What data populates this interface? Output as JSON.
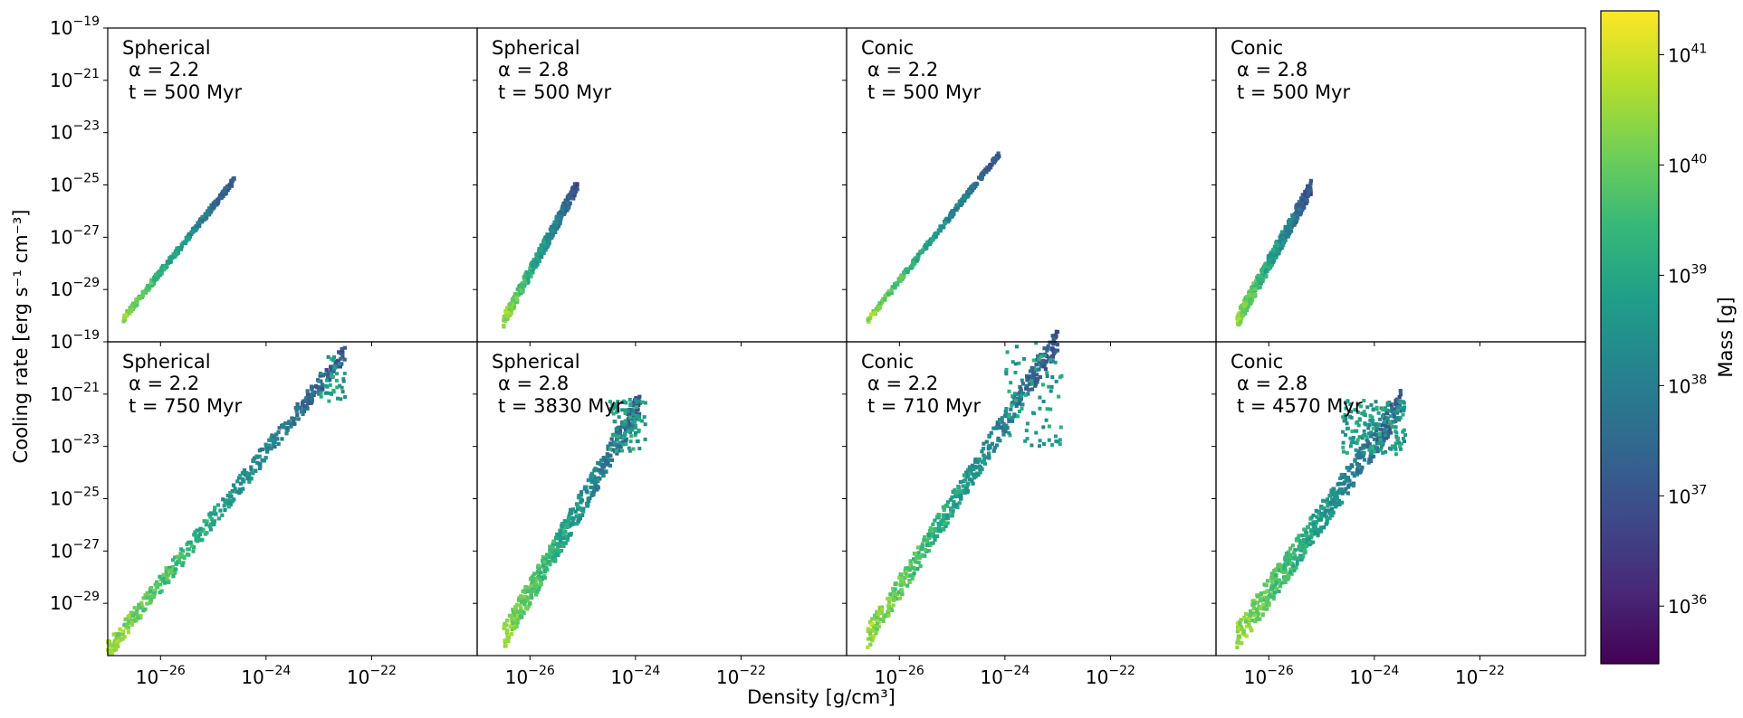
{
  "chart_data": {
    "type": "scatter",
    "figure": {
      "xlabel": "Density [g/cm³]",
      "ylabel": "Cooling rate [erg s⁻¹ cm⁻³]",
      "xscale": "log",
      "yscale": "log",
      "xlim": [
        1e-27,
        1e-20
      ],
      "ylim": [
        1e-31,
        1e-19
      ],
      "x_tick_labels": [
        "10⁻²⁶",
        "10⁻²⁴",
        "10⁻²²"
      ],
      "y_tick_labels": [
        "10⁻¹⁹",
        "10⁻²¹",
        "10⁻²³",
        "10⁻²⁵",
        "10⁻²⁷",
        "10⁻²⁹"
      ],
      "grid": false,
      "layout": "2 rows x 4 columns, shared axes"
    },
    "colorbar": {
      "label": "Mass [g]",
      "scale": "log",
      "colormap": "viridis",
      "range": [
        3e+35,
        2.5e+41
      ],
      "tick_labels": [
        "10³⁶",
        "10³⁷",
        "10³⁸",
        "10³⁹",
        "10⁴⁰",
        "10⁴¹"
      ],
      "stops": [
        "#440154",
        "#482878",
        "#3e4989",
        "#31688e",
        "#26828e",
        "#1f9e89",
        "#35b779",
        "#6ece58",
        "#b5de2b",
        "#fde725"
      ]
    },
    "panels": [
      {
        "model": "Spherical",
        "alpha": "α = 2.2",
        "time": "t = 500 Myr",
        "lines": [
          {
            "x": [
              -26.7,
              -24.6
            ],
            "y": [
              -30.1,
              -24.8
            ],
            "w": 0.12
          }
        ],
        "clusters": []
      },
      {
        "model": "Spherical",
        "alpha": "α = 2.8",
        "time": "t = 500 Myr",
        "lines": [
          {
            "x": [
              -26.5,
              -25.1
            ],
            "y": [
              -30.2,
              -25.0
            ],
            "w": 0.25
          }
        ],
        "clusters": []
      },
      {
        "model": "Conic",
        "alpha": "α = 2.2",
        "time": "t = 500 Myr",
        "lines": [
          {
            "x": [
              -26.6,
              -24.1
            ],
            "y": [
              -30.2,
              -23.8
            ],
            "w": 0.1
          }
        ],
        "clusters": []
      },
      {
        "model": "Conic",
        "alpha": "α = 2.8",
        "time": "t = 500 Myr",
        "lines": [
          {
            "x": [
              -26.6,
              -25.2
            ],
            "y": [
              -30.2,
              -25.1
            ],
            "w": 0.3
          }
        ],
        "clusters": []
      },
      {
        "model": "Spherical",
        "alpha": "α = 2.2",
        "time": "t = 750 Myr",
        "lines": [
          {
            "x": [
              -27.0,
              -22.5
            ],
            "y": [
              -30.8,
              -19.4
            ],
            "w": 0.35
          }
        ],
        "clusters": [
          {
            "x": [
              -23.0,
              -22.5
            ],
            "y": [
              -21.3,
              -19.5
            ],
            "n": 40
          }
        ]
      },
      {
        "model": "Spherical",
        "alpha": "α = 2.8",
        "time": "t = 3830 Myr",
        "lines": [
          {
            "x": [
              -26.5,
              -23.9
            ],
            "y": [
              -30.3,
              -21.3
            ],
            "w": 0.5
          }
        ],
        "clusters": [
          {
            "x": [
              -24.5,
              -23.8
            ],
            "y": [
              -23.2,
              -21.2
            ],
            "n": 90
          }
        ]
      },
      {
        "model": "Conic",
        "alpha": "α = 2.2",
        "time": "t = 710 Myr",
        "lines": [
          {
            "x": [
              -26.6,
              -23.0
            ],
            "y": [
              -30.3,
              -18.9
            ],
            "w": 0.45
          }
        ],
        "clusters": [
          {
            "x": [
              -24.0,
              -22.9
            ],
            "y": [
              -23.0,
              -19.0
            ],
            "n": 80
          }
        ]
      },
      {
        "model": "Conic",
        "alpha": "α = 2.8",
        "time": "t = 4570 Myr",
        "lines": [
          {
            "x": [
              -26.6,
              -23.5
            ],
            "y": [
              -30.3,
              -21.4
            ],
            "w": 0.55
          }
        ],
        "clusters": [
          {
            "x": [
              -24.6,
              -23.4
            ],
            "y": [
              -23.3,
              -21.2
            ],
            "n": 160
          }
        ]
      }
    ]
  }
}
